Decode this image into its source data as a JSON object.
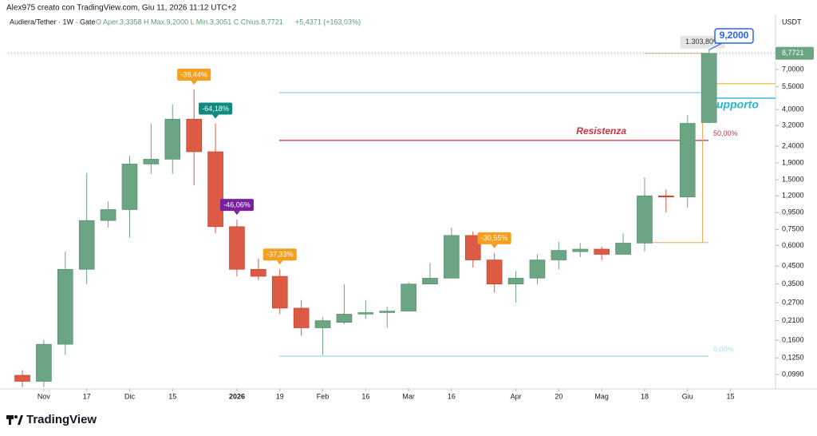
{
  "header": {
    "author": "Alex975 creato con TradingView.com, Giu 11, 2026 11:12 UTC+2",
    "brand": "TradingView"
  },
  "chart_data": {
    "type": "candlestick",
    "title": "Audiera/Tether · 1W · Gate",
    "ohlc": "O  Aper.3,3358   H  Max.9,2000   L  Min.3,3051   C  Chius.8,7721",
    "change": "+5,4371 (+163,03%)",
    "currency": "USDT",
    "up_color": "#6ba583",
    "down_color": "#dd5a45",
    "open": [
      0.098,
      0.09,
      0.151,
      0.43,
      0.85,
      0.99,
      1.87,
      2.0,
      3.5,
      2.22,
      0.78,
      0.43,
      0.39,
      0.25,
      0.19,
      0.205,
      0.23,
      0.235,
      0.24,
      0.35,
      0.38,
      0.69,
      0.49,
      0.35,
      0.38,
      0.49,
      0.55,
      0.57,
      0.53,
      0.62,
      1.2,
      1.18,
      3.3358
    ],
    "high": [
      0.105,
      0.16,
      0.55,
      1.65,
      1.11,
      2.1,
      3.3,
      4.3,
      5.3,
      3.3,
      0.86,
      0.5,
      0.43,
      0.28,
      0.22,
      0.35,
      0.28,
      0.255,
      0.36,
      0.47,
      0.77,
      0.73,
      0.54,
      0.42,
      0.53,
      0.63,
      0.62,
      0.59,
      0.71,
      1.55,
      1.31,
      3.7,
      9.2
    ],
    "low": [
      0.083,
      0.083,
      0.13,
      0.35,
      0.77,
      0.67,
      1.63,
      1.63,
      1.39,
      0.71,
      0.39,
      0.37,
      0.23,
      0.17,
      0.13,
      0.2,
      0.215,
      0.19,
      0.24,
      0.35,
      0.38,
      0.44,
      0.31,
      0.27,
      0.35,
      0.43,
      0.51,
      0.49,
      0.53,
      0.55,
      0.95,
      1.02,
      3.3051
    ],
    "close": [
      0.09,
      0.151,
      0.43,
      0.85,
      0.99,
      1.87,
      2.0,
      3.5,
      2.22,
      0.78,
      0.43,
      0.39,
      0.25,
      0.19,
      0.21,
      0.23,
      0.235,
      0.24,
      0.35,
      0.38,
      0.69,
      0.49,
      0.35,
      0.38,
      0.49,
      0.56,
      0.57,
      0.53,
      0.62,
      1.2,
      1.18,
      3.3,
      8.7721
    ],
    "log_scale": true,
    "ylim": [
      0.081,
      14.45
    ],
    "yticks": [
      {
        "value": 7,
        "label": "7,0000"
      },
      {
        "value": 5.5,
        "label": "5,5000"
      },
      {
        "value": 4,
        "label": "4,0000"
      },
      {
        "value": 3.2,
        "label": "3,2000"
      },
      {
        "value": 2.4,
        "label": "2,4000"
      },
      {
        "value": 1.9,
        "label": "1,9000"
      },
      {
        "value": 1.5,
        "label": "1,5000"
      },
      {
        "value": 1.2,
        "label": "1,2000"
      },
      {
        "value": 0.95,
        "label": "0,9500"
      },
      {
        "value": 0.75,
        "label": "0,7500"
      },
      {
        "value": 0.6,
        "label": "0,6000"
      },
      {
        "value": 0.45,
        "label": "0,4500"
      },
      {
        "value": 0.35,
        "label": "0,3500"
      },
      {
        "value": 0.27,
        "label": "0,2700"
      },
      {
        "value": 0.21,
        "label": "0,2100"
      },
      {
        "value": 0.16,
        "label": "0,1600"
      },
      {
        "value": 0.125,
        "label": "0,1250"
      },
      {
        "value": 0.099,
        "label": "0,0990"
      }
    ],
    "xlim": [
      -0.67,
      35.1
    ],
    "xticks": [
      {
        "value": 1,
        "label": "Nov"
      },
      {
        "value": 3,
        "label": "17"
      },
      {
        "value": 5,
        "label": "Dic"
      },
      {
        "value": 7,
        "label": "15"
      },
      {
        "value": 10,
        "label": "2026"
      },
      {
        "value": 12,
        "label": "19"
      },
      {
        "value": 14,
        "label": "Feb"
      },
      {
        "value": 16,
        "label": "16"
      },
      {
        "value": 18,
        "label": "Mar"
      },
      {
        "value": 20,
        "label": "16"
      },
      {
        "value": 23,
        "label": "Apr"
      },
      {
        "value": 25,
        "label": "20"
      },
      {
        "value": 27,
        "label": "Mag"
      },
      {
        "value": 29,
        "label": "18"
      },
      {
        "value": 31,
        "label": "Giu"
      },
      {
        "value": 33,
        "label": "15"
      }
    ],
    "last_price_label": "8,7721",
    "callout": "9,2000",
    "measure": {
      "from": 0.625,
      "to": 8.7721,
      "label": "1.303,80%",
      "color": "#f5a45c"
    },
    "levels": [
      {
        "value": 5.07,
        "color": "#8fd6e3"
      },
      {
        "value": 4.69,
        "color": "#2bb5d0",
        "label": "upporto"
      },
      {
        "value": 5.74,
        "color": "#f2c14e"
      },
      {
        "value": 2.6,
        "color": "#c8313f",
        "label": "Resistenza",
        "pct": "50,00%"
      },
      {
        "value": 0.128,
        "color": "#a9dce8",
        "pct": "0,00%"
      }
    ],
    "annotations": [
      {
        "text": "-38,44%",
        "color": "#f59f1e"
      },
      {
        "text": "-64,18%",
        "color": "#0f8a7e"
      },
      {
        "text": "-46,06%",
        "color": "#7b1fa2"
      },
      {
        "text": "-37,33%",
        "color": "#f59f1e"
      },
      {
        "text": "-30,55%",
        "color": "#f59f1e"
      }
    ]
  }
}
